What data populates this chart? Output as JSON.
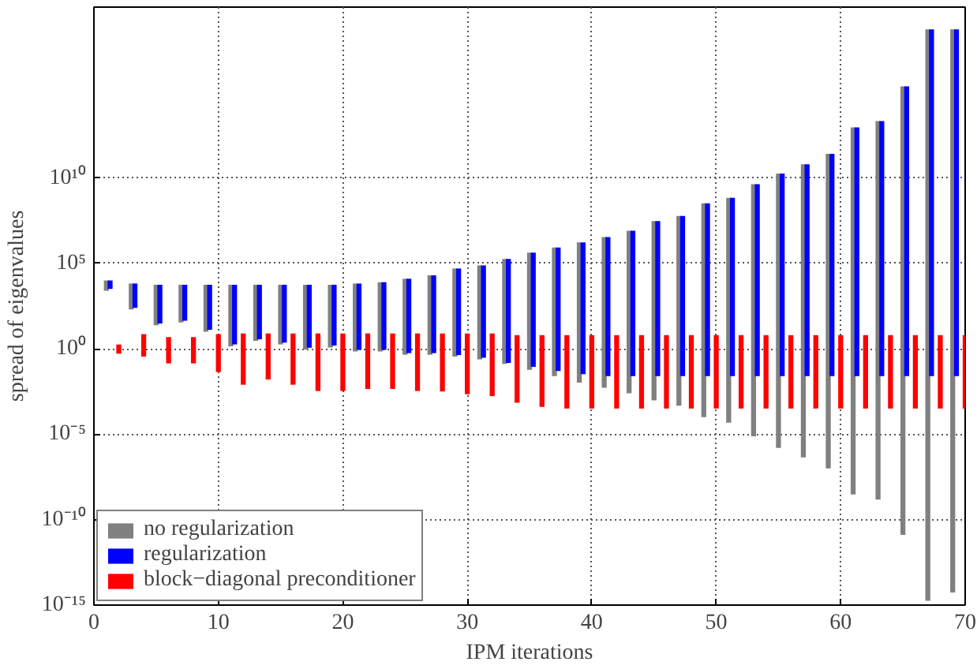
{
  "chart_data": {
    "type": "bar",
    "xlabel": "IPM iterations",
    "ylabel": "spread of eigenvalues",
    "log": "y",
    "grid": true,
    "legend": "bottom left",
    "xlim": [
      0,
      70
    ],
    "xticks": [
      0,
      10,
      20,
      30,
      40,
      50,
      60,
      70
    ],
    "ylim": [
      1e-15,
      1e+20
    ],
    "yticks": [
      {
        "value": 1e-15,
        "label": "10⁻¹⁵"
      },
      {
        "value": 1e-10,
        "label": "10⁻¹⁰"
      },
      {
        "value": 1e-05,
        "label": "10⁻⁵"
      },
      {
        "value": 1,
        "label": "10⁰"
      },
      {
        "value": 100000.0,
        "label": "10⁵"
      },
      {
        "value": 10000000000.0,
        "label": "10¹⁰"
      }
    ],
    "series": [
      {
        "name": "no regularization",
        "color": "#808080",
        "x": [
          1,
          3,
          5,
          7,
          9,
          11,
          13,
          15,
          17,
          19,
          21,
          23,
          25,
          27,
          29,
          31,
          33,
          35,
          37,
          39,
          41,
          43,
          45,
          47,
          49,
          51,
          53,
          55,
          57,
          59,
          61,
          63,
          65,
          67,
          69
        ],
        "base": [
          2500,
          200,
          24,
          35,
          10,
          1.4,
          2.9,
          1.8,
          0.9,
          1.2,
          0.7,
          0.7,
          0.45,
          0.45,
          0.35,
          0.24,
          0.13,
          0.059,
          0.025,
          0.0105,
          0.0052,
          0.0025,
          0.00095,
          0.00047,
          0.0001,
          4.8e-05,
          7.6e-06,
          1.6e-06,
          4.4e-07,
          1e-07,
          3e-09,
          1.5e-09,
          1.3e-11,
          1.8e-15,
          5.5e-15
        ],
        "values": [
          7500,
          6400,
          5580,
          5570,
          5590,
          5600,
          5600,
          5600,
          5600,
          5600,
          6600,
          7900,
          12600,
          20000,
          50000,
          76000,
          180000.0,
          420000.0,
          850000.0,
          1700000.0,
          3500000.0,
          8100000.0,
          30000000.0,
          60000000.0,
          330000000.0,
          680000000.0,
          4300000000.0,
          18000000000.0,
          63000000000.0,
          260000000000.0,
          9100000000000.0,
          21000000000000.0,
          2300000000000000.0,
          5e+18,
          5e+18
        ]
      },
      {
        "name": "regularization",
        "color": "#0000ff",
        "x": [
          1.3,
          3.3,
          5.3,
          7.3,
          9.3,
          11.3,
          13.3,
          15.3,
          17.3,
          19.3,
          21.3,
          23.3,
          25.3,
          27.3,
          29.3,
          31.3,
          33.3,
          35.3,
          37.3,
          39.3,
          41.3,
          43.3,
          45.3,
          47.3,
          49.3,
          51.3,
          53.3,
          55.3,
          57.3,
          59.3,
          61.3,
          63.3,
          65.3,
          67.3,
          69.3
        ],
        "base": [
          3200,
          250,
          30,
          44,
          13,
          1.8,
          3.6,
          2.3,
          1.15,
          1.55,
          0.87,
          0.87,
          0.56,
          0.56,
          0.43,
          0.3,
          0.15,
          0.089,
          0.05,
          0.033,
          0.025,
          0.025,
          0.025,
          0.025,
          0.025,
          0.025,
          0.025,
          0.025,
          0.025,
          0.025,
          0.025,
          0.025,
          0.025,
          0.025,
          0.025
        ],
        "values": [
          6800,
          6400,
          5570,
          5560,
          5590,
          5600,
          5600,
          5600,
          5600,
          5600,
          6600,
          7900,
          12600,
          20000,
          50000,
          76000,
          180000.0,
          420000.0,
          850000.0,
          1700000.0,
          3500000.0,
          8100000.0,
          30000000.0,
          60000000.0,
          330000000.0,
          680000000.0,
          4300000000.0,
          18000000000.0,
          63000000000.0,
          260000000000.0,
          9100000000000.0,
          21000000000000.0,
          2300000000000000.0,
          5e+18,
          5e+18
        ]
      },
      {
        "name": "block−diagonal preconditioner",
        "color": "#ff0000",
        "x": [
          2,
          4,
          6,
          8,
          10,
          12,
          14,
          16,
          18,
          20,
          22,
          24,
          26,
          28,
          30,
          32,
          34,
          36,
          38,
          40,
          42,
          44,
          46,
          48,
          50,
          52,
          54,
          56,
          58,
          60,
          62,
          64,
          66,
          68,
          70
        ],
        "base": [
          0.52,
          0.35,
          0.14,
          0.14,
          0.044,
          0.0079,
          0.016,
          0.0079,
          0.0034,
          0.0034,
          0.0045,
          0.0045,
          0.0034,
          0.0032,
          0.0022,
          0.0017,
          0.0007,
          0.0004,
          0.00032,
          0.00032,
          0.00032,
          0.00032,
          0.00032,
          0.00032,
          0.00032,
          0.00032,
          0.00032,
          0.00032,
          0.00032,
          0.00032,
          0.00032,
          0.00032,
          0.00032,
          0.00032,
          0.00032
        ],
        "values": [
          1.26,
          6.9,
          4.7,
          4.7,
          7.2,
          7.9,
          7.9,
          7.9,
          7.9,
          7.9,
          7.9,
          7.9,
          7.9,
          7.9,
          7.9,
          7.9,
          6.3,
          6.3,
          6.3,
          6.3,
          6.3,
          6.3,
          6.3,
          6.3,
          6.3,
          6.3,
          6.3,
          6.3,
          6.3,
          6.3,
          6.3,
          6.3,
          6.3,
          6.3,
          6.3
        ]
      }
    ]
  }
}
